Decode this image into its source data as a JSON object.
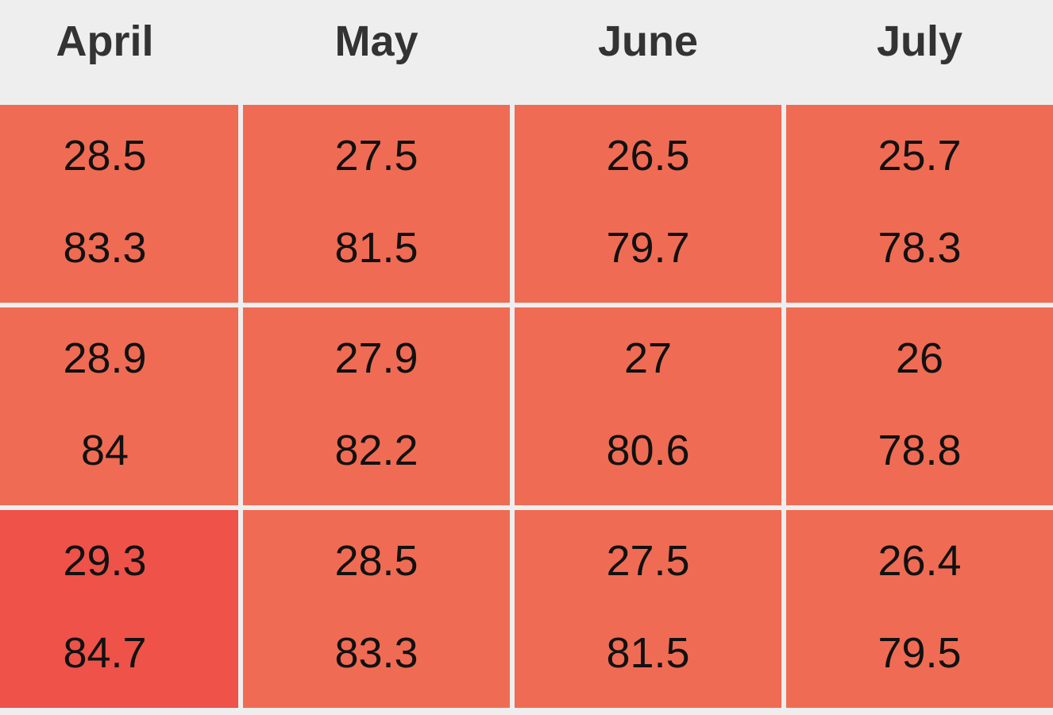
{
  "table": {
    "columns": [
      "April",
      "May",
      "June",
      "July"
    ],
    "rows": [
      [
        {
          "values": [
            28.5,
            83.3
          ],
          "color": "#f06b53"
        },
        {
          "values": [
            27.5,
            81.5
          ],
          "color": "#f06b53"
        },
        {
          "values": [
            26.5,
            79.7
          ],
          "color": "#f06b53"
        },
        {
          "values": [
            25.7,
            78.3
          ],
          "color": "#f06b53"
        }
      ],
      [
        {
          "values": [
            28.9,
            84
          ],
          "color": "#f06b53"
        },
        {
          "values": [
            27.9,
            82.2
          ],
          "color": "#f06b53"
        },
        {
          "values": [
            27,
            80.6
          ],
          "color": "#f06b53"
        },
        {
          "values": [
            26,
            78.8
          ],
          "color": "#f06b53"
        }
      ],
      [
        {
          "values": [
            29.3,
            84.7
          ],
          "color": "#ee5249"
        },
        {
          "values": [
            28.5,
            83.3
          ],
          "color": "#f06b53"
        },
        {
          "values": [
            27.5,
            81.5
          ],
          "color": "#f06b53"
        },
        {
          "values": [
            26.4,
            79.5
          ],
          "color": "#f06b53"
        }
      ]
    ]
  }
}
